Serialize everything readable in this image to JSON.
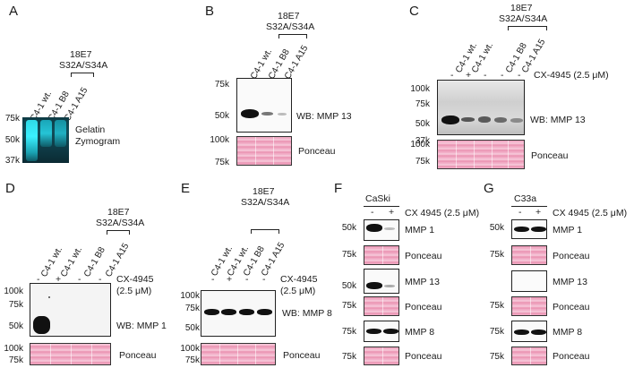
{
  "common": {
    "construct": "18E7",
    "mutant": "S32A/S34A",
    "wt": "C4-1 wt.",
    "b8": "C4-1 B8",
    "a15": "C4-1 A15",
    "minus": "-",
    "plus": "+",
    "ponceau": "Ponceau"
  },
  "panelA": {
    "letter": "A",
    "mw": [
      "75k",
      "50k",
      "37k"
    ],
    "label1": "Gelatin",
    "label2": "Zymogram"
  },
  "panelB": {
    "letter": "B",
    "mw_blot": [
      "75k",
      "50k"
    ],
    "mw_pon": [
      "100k",
      "75k"
    ],
    "wb": "WB: MMP 13"
  },
  "panelC": {
    "letter": "C",
    "cx": "CX-4945 (2.5 μM)",
    "mw_blot": [
      "100k",
      "75k",
      "50k",
      "37k"
    ],
    "mw_pon": [
      "100k",
      "75k"
    ],
    "wb": "WB: MMP 13"
  },
  "panelD": {
    "letter": "D",
    "cx1": "CX-4945",
    "cx2": "(2.5 μM)",
    "mw_blot": [
      "100k",
      "75k",
      "50k"
    ],
    "mw_pon": [
      "100k",
      "75k"
    ],
    "wb": "WB: MMP 1"
  },
  "panelE": {
    "letter": "E",
    "cx1": "CX-4945",
    "cx2": "(2.5 μM)",
    "mw_blot": [
      "100k",
      "75k",
      "50k"
    ],
    "mw_pon": [
      "100k",
      "75k"
    ],
    "wb": "WB: MMP 8"
  },
  "panelF": {
    "letter": "F",
    "cell": "CaSki",
    "cx": "CX 4945 (2.5 μM)",
    "rows": [
      {
        "mw": "50k",
        "label": "MMP 1"
      },
      {
        "mw": "75k",
        "label": "Ponceau"
      },
      {
        "mw": "50k",
        "label": "MMP 13"
      },
      {
        "mw": "75k",
        "label": "Ponceau"
      },
      {
        "mw": "75k",
        "label": "MMP 8"
      },
      {
        "mw": "75k",
        "label": "Ponceau"
      }
    ]
  },
  "panelG": {
    "letter": "G",
    "cell": "C33a",
    "cx": "CX 4945 (2.5 μM)",
    "rows": [
      {
        "mw": "50k",
        "label": "MMP 1"
      },
      {
        "mw": "75k",
        "label": "Ponceau"
      },
      {
        "mw": "",
        "label": "MMP 13"
      },
      {
        "mw": "75k",
        "label": "Ponceau"
      },
      {
        "mw": "75k",
        "label": "MMP 8"
      },
      {
        "mw": "75k",
        "label": "Ponceau"
      }
    ]
  },
  "colors": {
    "ponceau": "#ee9bbb",
    "zymogram": "#1a4a55",
    "band": "#111111"
  }
}
